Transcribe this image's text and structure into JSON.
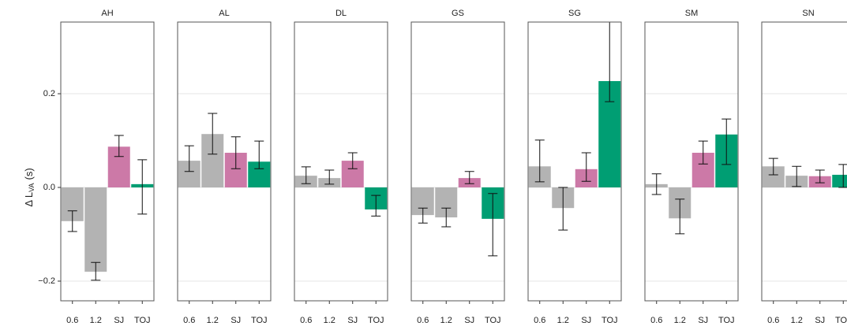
{
  "chart_data": {
    "type": "bar",
    "y_label": {
      "main": "Δ L",
      "sub": "VA",
      "unit": "(s)"
    },
    "categories": [
      "0.6",
      "1.2",
      "SJ",
      "TOJ"
    ],
    "colors": [
      "#b3b3b3",
      "#b3b3b3",
      "#cc79a7",
      "#009e73"
    ],
    "ylim": [
      -0.242,
      0.353
    ],
    "yticks": [
      {
        "value": -0.2,
        "label": "−0.2"
      },
      {
        "value": 0,
        "label": "0.0"
      },
      {
        "value": 0.2,
        "label": "0.2"
      }
    ],
    "grid": true,
    "panels": [
      {
        "title": "AH",
        "values": [
          -0.072,
          -0.18,
          0.087,
          0.007
        ],
        "lower": [
          -0.094,
          -0.198,
          0.066,
          -0.057
        ],
        "upper": [
          -0.05,
          -0.16,
          0.111,
          0.059
        ]
      },
      {
        "title": "AL",
        "values": [
          0.057,
          0.114,
          0.074,
          0.055
        ],
        "lower": [
          0.034,
          0.071,
          0.04,
          0.04
        ],
        "upper": [
          0.089,
          0.158,
          0.108,
          0.099
        ]
      },
      {
        "title": "DL",
        "values": [
          0.025,
          0.02,
          0.057,
          -0.047
        ],
        "lower": [
          0.008,
          0.007,
          0.04,
          -0.061
        ],
        "upper": [
          0.044,
          0.037,
          0.074,
          -0.017
        ]
      },
      {
        "title": "GS",
        "values": [
          -0.059,
          -0.064,
          0.02,
          -0.067
        ],
        "lower": [
          -0.076,
          -0.084,
          0.008,
          -0.146
        ],
        "upper": [
          -0.044,
          -0.044,
          0.034,
          -0.013
        ]
      },
      {
        "title": "SG",
        "values": [
          0.045,
          -0.044,
          0.039,
          0.227
        ],
        "lower": [
          0.012,
          -0.091,
          0.013,
          0.183
        ],
        "upper": [
          0.101,
          0.0,
          0.074,
          0.36
        ]
      },
      {
        "title": "SM",
        "values": [
          0.007,
          -0.066,
          0.074,
          0.113
        ],
        "lower": [
          -0.015,
          -0.099,
          0.05,
          0.049
        ],
        "upper": [
          0.029,
          -0.025,
          0.099,
          0.146
        ]
      },
      {
        "title": "SN",
        "values": [
          0.045,
          0.025,
          0.024,
          0.027
        ],
        "lower": [
          0.027,
          0.002,
          0.01,
          0.0
        ],
        "upper": [
          0.062,
          0.045,
          0.037,
          0.049
        ]
      }
    ]
  }
}
